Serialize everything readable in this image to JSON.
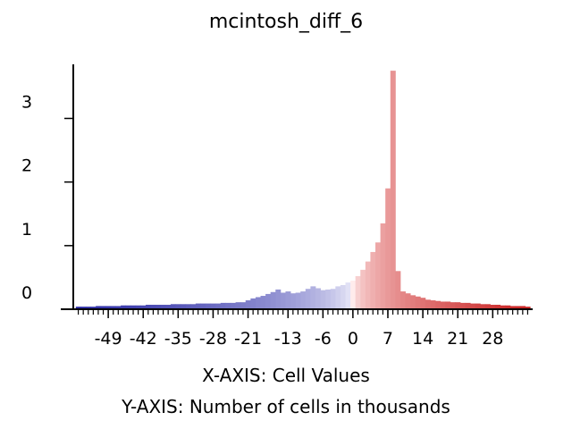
{
  "chart_data": {
    "type": "bar",
    "title": "mcintosh_diff_6",
    "xlabel": "X-AXIS: Cell Values",
    "ylabel": "Y-AXIS: Number of cells in thousands",
    "xlim": [
      -56,
      36
    ],
    "ylim": [
      0,
      3.85
    ],
    "grid": false,
    "legend": "none",
    "x_ticks": [
      -49,
      -42,
      -35,
      -28,
      -21,
      -13,
      -6,
      0,
      7,
      14,
      21,
      28
    ],
    "x_tick_labels": [
      "-49",
      "-42",
      "-35",
      "-28",
      "-21",
      "-13",
      "-6",
      "0",
      "7",
      "14",
      "21",
      "28"
    ],
    "y_ticks": [
      0,
      1,
      2,
      3
    ],
    "y_tick_labels": [
      "0",
      "1",
      "2",
      "3"
    ],
    "colors": {
      "negative_end": "#2020a0",
      "neutral": "#ffffff",
      "positive_end": "#c00000"
    },
    "series": [
      {
        "x": [
          -55,
          -54,
          -53,
          -52,
          -51,
          -50,
          -49,
          -48,
          -47,
          -46,
          -45,
          -44,
          -43,
          -42,
          -41,
          -40,
          -39,
          -38,
          -37,
          -36,
          -35,
          -34,
          -33,
          -32,
          -31,
          -30,
          -29,
          -28,
          -27,
          -26,
          -25,
          -24,
          -23,
          -22,
          -21,
          -20,
          -19,
          -18,
          -17,
          -16,
          -15,
          -14,
          -13,
          -12,
          -11,
          -10,
          -9,
          -8,
          -7,
          -6,
          -5,
          -4,
          -3,
          -2,
          -1,
          0,
          1,
          2,
          3,
          4,
          5,
          6,
          7,
          8,
          9,
          10,
          11,
          12,
          13,
          14,
          15,
          16,
          17,
          18,
          19,
          20,
          21,
          22,
          23,
          24,
          25,
          26,
          27,
          28,
          29,
          30,
          31,
          32,
          33,
          34,
          35
        ],
        "values": [
          0.04,
          0.04,
          0.04,
          0.04,
          0.05,
          0.05,
          0.05,
          0.05,
          0.05,
          0.06,
          0.06,
          0.06,
          0.06,
          0.06,
          0.07,
          0.07,
          0.07,
          0.07,
          0.07,
          0.08,
          0.08,
          0.08,
          0.08,
          0.08,
          0.09,
          0.09,
          0.09,
          0.09,
          0.09,
          0.1,
          0.1,
          0.1,
          0.11,
          0.11,
          0.14,
          0.17,
          0.19,
          0.21,
          0.24,
          0.27,
          0.31,
          0.26,
          0.28,
          0.25,
          0.26,
          0.28,
          0.32,
          0.36,
          0.33,
          0.3,
          0.31,
          0.32,
          0.36,
          0.38,
          0.42,
          0.45,
          0.52,
          0.62,
          0.75,
          0.9,
          1.05,
          1.35,
          1.9,
          3.75,
          0.6,
          0.28,
          0.25,
          0.22,
          0.2,
          0.18,
          0.15,
          0.14,
          0.13,
          0.12,
          0.12,
          0.11,
          0.11,
          0.1,
          0.1,
          0.09,
          0.09,
          0.08,
          0.08,
          0.07,
          0.07,
          0.06,
          0.06,
          0.05,
          0.05,
          0.05,
          0.04
        ]
      }
    ]
  }
}
